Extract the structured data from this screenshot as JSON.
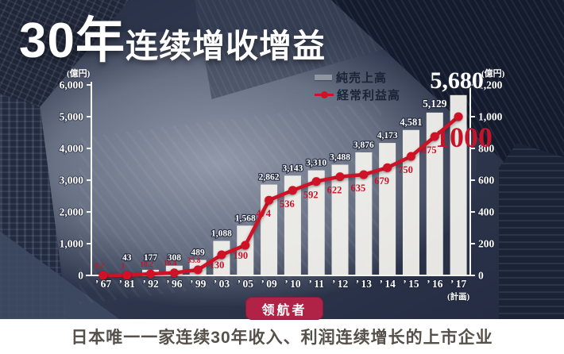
{
  "title": {
    "big": "30年",
    "rest": "连续增收增益"
  },
  "chart_data": {
    "type": "bar+line",
    "unit_left": "(億円)",
    "unit_right": "(億円)",
    "categories": [
      "’ 67",
      "’ 81",
      "’ 92",
      "’ 96",
      "’ 99",
      "’ 03",
      "’ 05",
      "’ 09",
      "’ 10",
      "’ 11",
      "’ 12",
      "’ 13",
      "’ 14",
      "’ 15",
      "’ 16",
      "’ 17"
    ],
    "plan_note": "(計画)",
    "series": [
      {
        "name": "純売上高",
        "type": "bar",
        "color": "#f1f0ec",
        "axis": "left",
        "values": [
          0,
          43,
          177,
          308,
          489,
          1088,
          1568,
          2862,
          3143,
          3310,
          3488,
          3876,
          4173,
          4581,
          5129,
          5680
        ],
        "labels": [
          "",
          "43",
          "177",
          "308",
          "489",
          "1,088",
          "1,568",
          "2,862",
          "3,143",
          "3,310",
          "3,488",
          "3,876",
          "4,173",
          "4,581",
          "5,129",
          "5,680"
        ]
      },
      {
        "name": "経常利益高",
        "type": "line",
        "color": "#cf1226",
        "axis": "right",
        "values": [
          0.2,
          1,
          10.2,
          16.4,
          35.8,
          130,
          190,
          474,
          536,
          592,
          622,
          635,
          679,
          750,
          875,
          1000
        ],
        "labels": [
          "0.2",
          "1",
          "10.2",
          "16.4",
          "35.8",
          "130",
          "190",
          "474",
          "536",
          "592",
          "622",
          "635",
          "679",
          "750",
          "875",
          "1000"
        ]
      }
    ],
    "y_left": {
      "ticks": [
        "6,000",
        "5,000",
        "4,000",
        "3,000",
        "2,000",
        "1,000",
        "0"
      ],
      "max": 6000
    },
    "y_right": {
      "ticks": [
        "1,200",
        "1,000",
        "800",
        "600",
        "400",
        "200",
        "0"
      ],
      "max": 1200
    },
    "legend_position": "top-right",
    "grid": false
  },
  "badge": {
    "label": "领航者",
    "color": "#b02347"
  },
  "footer": {
    "text": "日本唯一一家连续30年收入、利润连续增长的上市企业"
  }
}
